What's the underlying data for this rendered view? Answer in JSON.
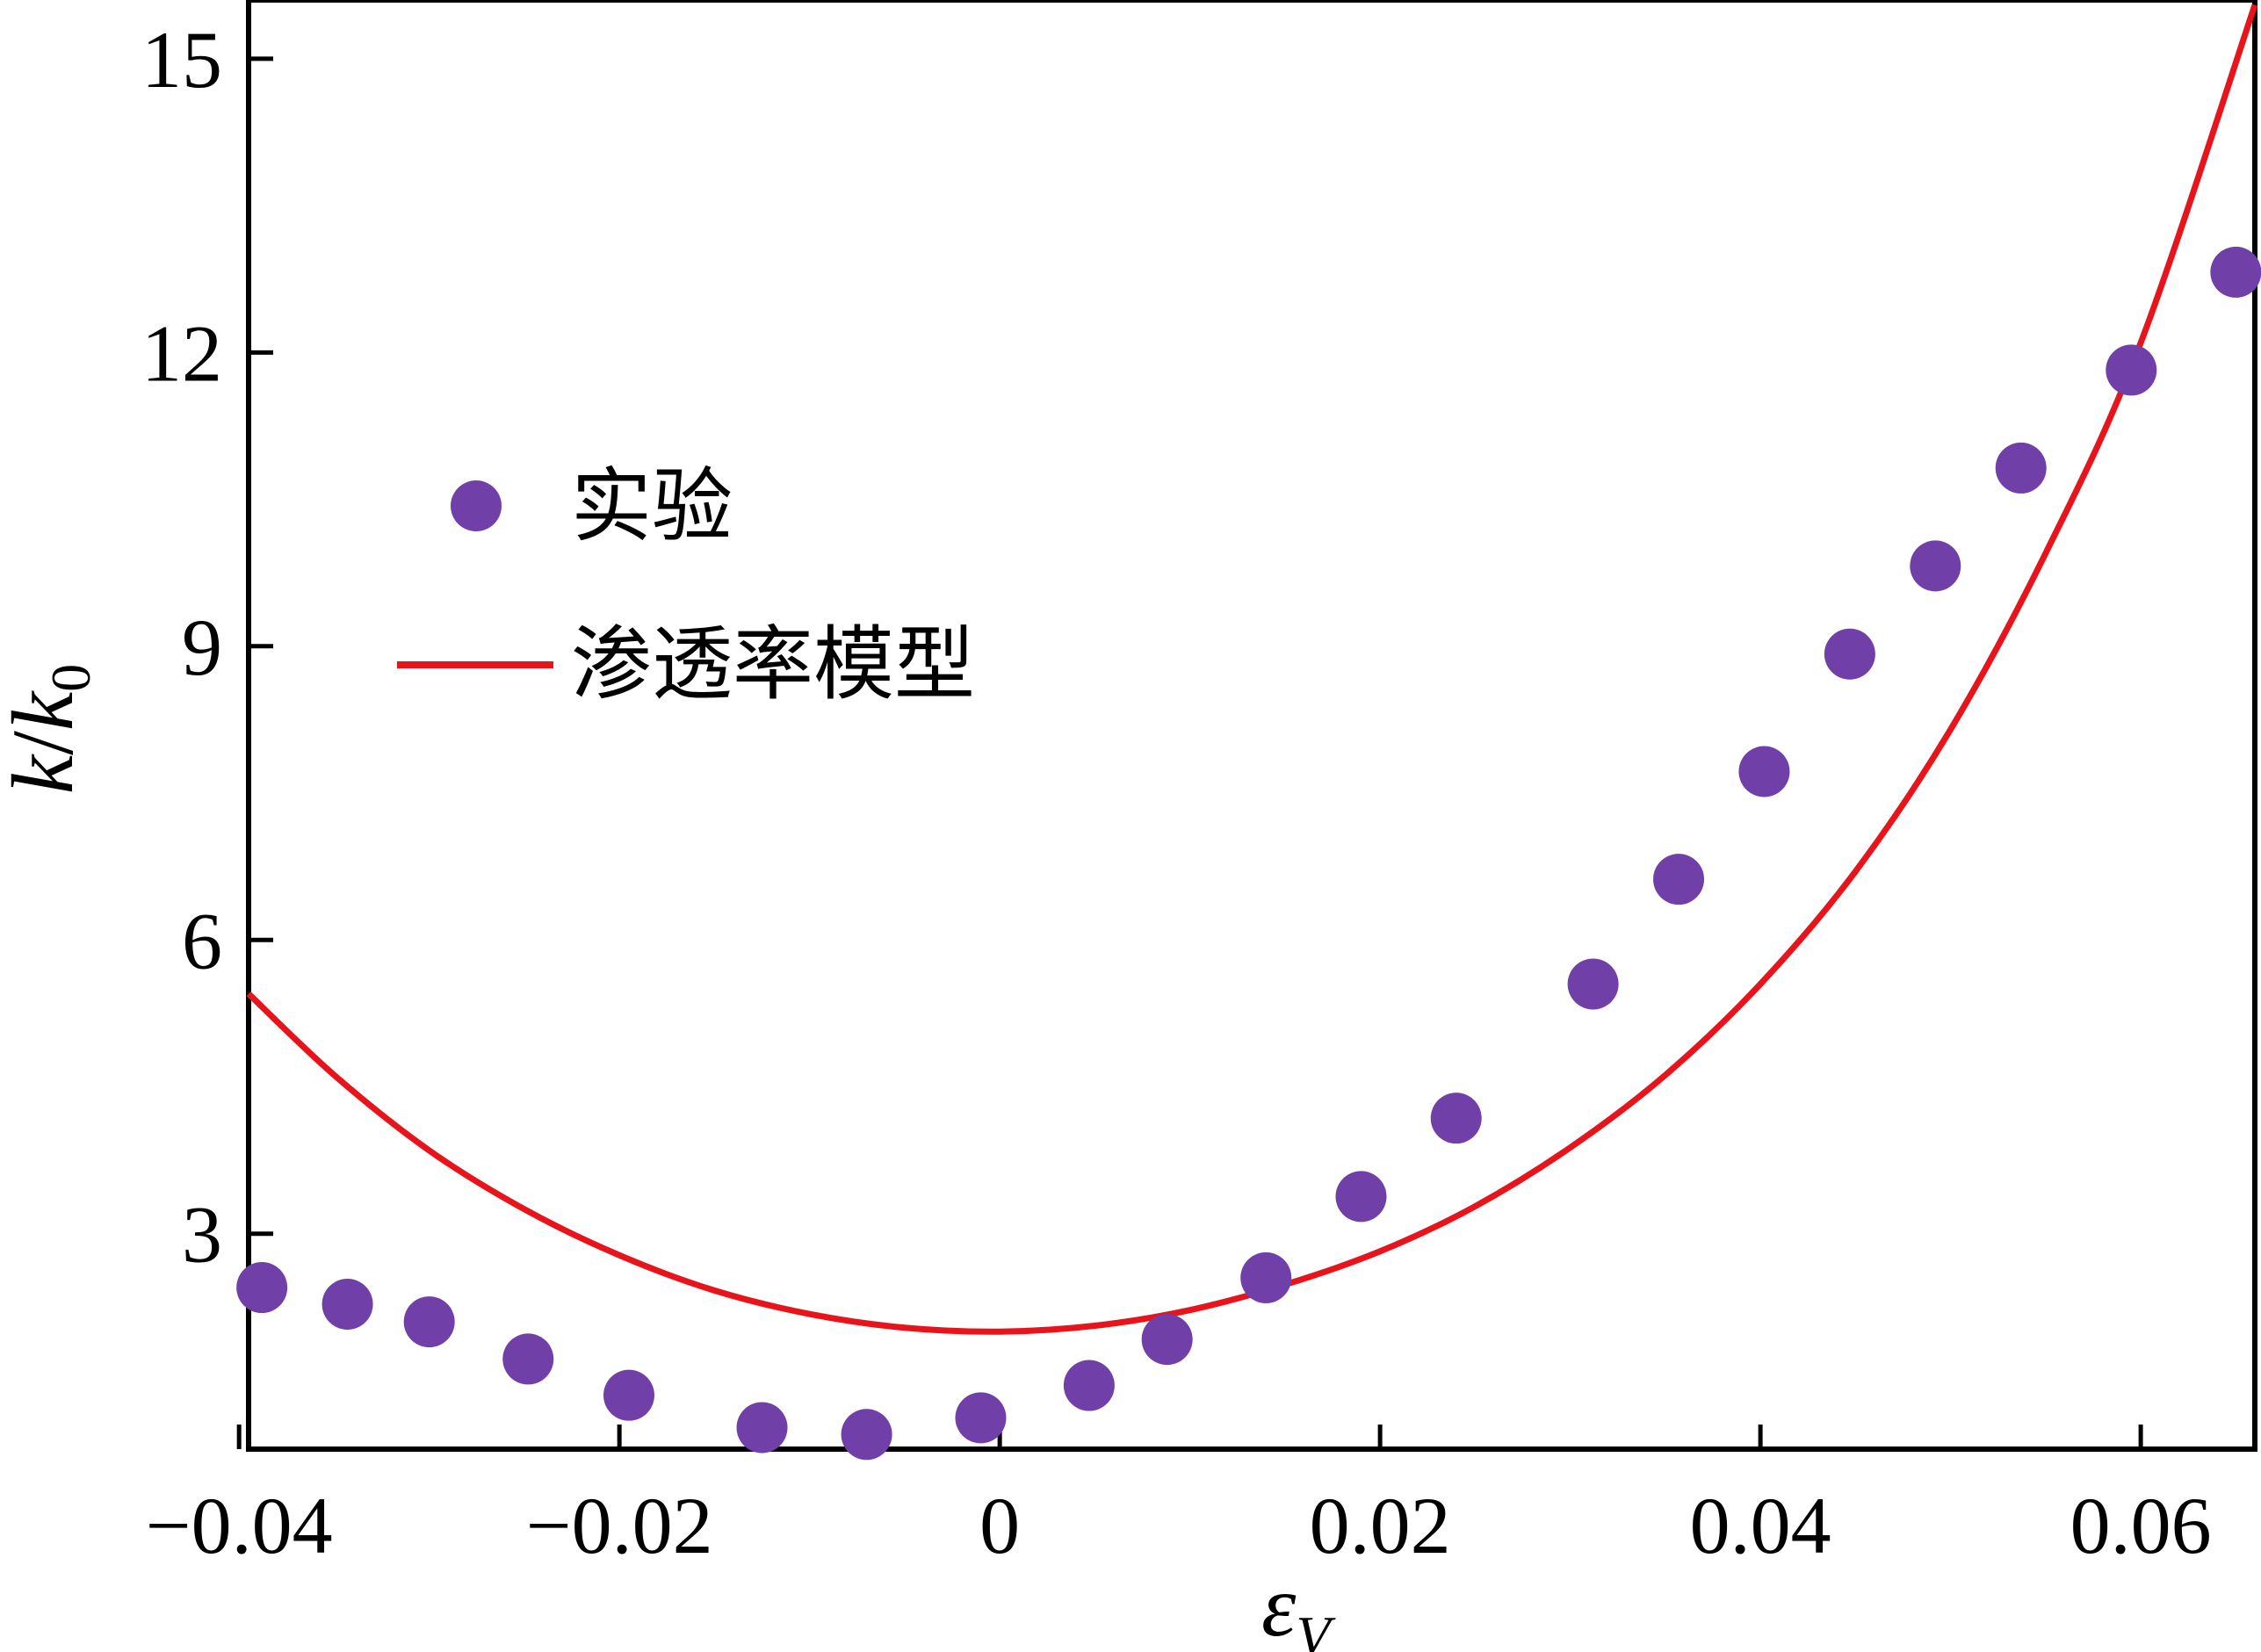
{
  "chart_data": {
    "type": "scatter",
    "xlabel": {
      "main": "ε",
      "sub": "V"
    },
    "ylabel": {
      "main": "k",
      "sep": "/",
      "denom": "k",
      "denom_sub": "0"
    },
    "xlim": [
      -0.0395,
      0.066
    ],
    "ylim": [
      0.8,
      15.6
    ],
    "xticks": [
      -0.04,
      -0.02,
      0,
      0.02,
      0.04,
      0.06
    ],
    "xtick_labels": [
      "−0.04",
      "−0.02",
      "0",
      "0.02",
      "0.04",
      "0.06"
    ],
    "yticks": [
      3,
      6,
      9,
      12,
      15
    ],
    "ytick_labels": [
      "3",
      "6",
      "9",
      "12",
      "15"
    ],
    "grid": false,
    "legend_position": "upper-left",
    "series": [
      {
        "name": "实验",
        "kind": "scatter",
        "color": "#7040A8",
        "x": [
          -0.0388,
          -0.0343,
          -0.03,
          -0.0248,
          -0.0195,
          -0.0125,
          -0.007,
          -0.001,
          0.0047,
          0.0088,
          0.014,
          0.019,
          0.024,
          0.0312,
          0.0357,
          0.0402,
          0.0447,
          0.0492,
          0.0537,
          0.0595,
          0.065
        ],
        "y": [
          2.45,
          2.28,
          2.1,
          1.72,
          1.35,
          1.02,
          0.95,
          1.12,
          1.45,
          1.92,
          2.55,
          3.38,
          4.18,
          5.55,
          6.62,
          7.72,
          8.92,
          9.82,
          10.82,
          11.82,
          12.82
        ]
      },
      {
        "name": "渗透率模型",
        "kind": "line",
        "color": "#E8141C",
        "x": [
          -0.0395,
          -0.035,
          -0.03,
          -0.025,
          -0.02,
          -0.015,
          -0.01,
          -0.005,
          0,
          0.005,
          0.01,
          0.015,
          0.02,
          0.025,
          0.03,
          0.035,
          0.04,
          0.045,
          0.05,
          0.055,
          0.06,
          0.066
        ],
        "y": [
          5.45,
          4.62,
          3.85,
          3.25,
          2.78,
          2.42,
          2.18,
          2.04,
          2.0,
          2.06,
          2.22,
          2.48,
          2.82,
          3.28,
          3.88,
          4.62,
          5.55,
          6.7,
          8.15,
          9.95,
          12.1,
          15.55
        ]
      }
    ]
  }
}
